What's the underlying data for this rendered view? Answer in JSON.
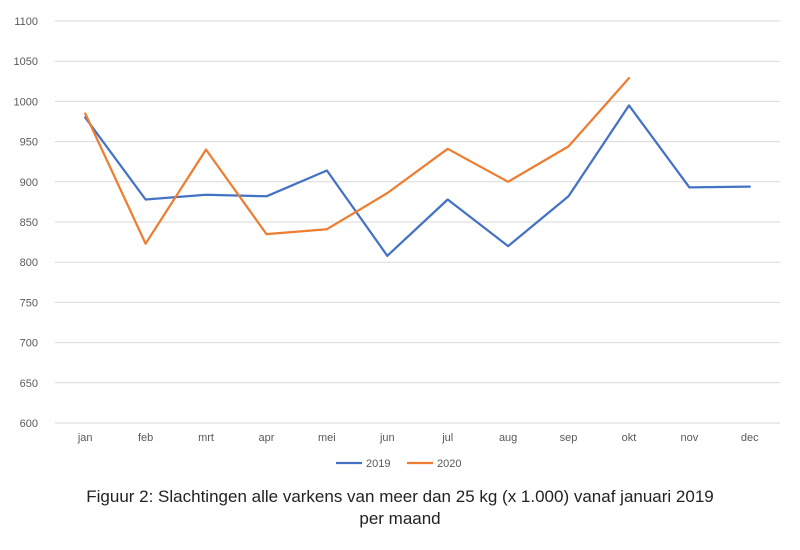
{
  "chart_data": {
    "type": "line",
    "categories": [
      "jan",
      "feb",
      "mrt",
      "apr",
      "mei",
      "jun",
      "jul",
      "aug",
      "sep",
      "okt",
      "nov",
      "dec"
    ],
    "series": [
      {
        "name": "2019",
        "color": "#4472C4",
        "values": [
          980,
          878,
          884,
          882,
          914,
          808,
          878,
          820,
          882,
          995,
          893,
          894
        ]
      },
      {
        "name": "2020",
        "color": "#ED7D31",
        "values": [
          985,
          823,
          940,
          835,
          841,
          886,
          941,
          900,
          944,
          1029,
          null,
          null
        ]
      }
    ],
    "ylim": [
      600,
      1100
    ],
    "yticks": [
      600,
      650,
      700,
      750,
      800,
      850,
      900,
      950,
      1000,
      1050,
      1100
    ],
    "grid": true,
    "legend_position": "bottom-center",
    "title": "",
    "xlabel": "",
    "ylabel": ""
  },
  "caption": {
    "line1": "Figuur 2: Slachtingen alle varkens van meer dan 25 kg (x 1.000) vanaf januari 2019",
    "line2": "per maand"
  }
}
